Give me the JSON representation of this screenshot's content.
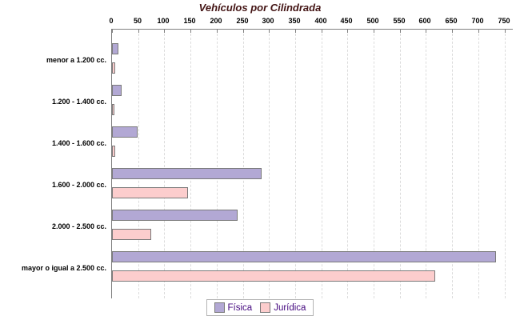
{
  "title": "Vehículos por Cilindrada",
  "chart_data": {
    "type": "bar",
    "orientation": "horizontal",
    "title": "Vehículos por Cilindrada",
    "categories": [
      "menor a 1.200 cc.",
      "1.200 - 1.400 cc.",
      "1.400 - 1.600 cc.",
      "1.600 - 2.000 cc.",
      "2.000 - 2.500 cc.",
      "mayor o igual a 2.500 cc."
    ],
    "series": [
      {
        "name": "Física",
        "color": "#b2a8d4",
        "values": [
          10,
          17,
          48,
          285,
          238,
          733
        ]
      },
      {
        "name": "Jurídica",
        "color": "#fccdcd",
        "values": [
          4,
          2,
          5,
          143,
          73,
          616
        ]
      }
    ],
    "xlim": [
      0,
      750
    ],
    "x_ticks": [
      0,
      50,
      100,
      150,
      200,
      250,
      300,
      350,
      400,
      450,
      500,
      550,
      600,
      650,
      700,
      750
    ],
    "grid": "vertical-dashed",
    "legend_position": "bottom-center",
    "axis_position": "top"
  },
  "colors": {
    "title": "#431414",
    "axis_line": "#808080",
    "gridline": "#dcdcdc",
    "bar_border": "#7a7a7a",
    "fisica_fill": "#b2a8d4",
    "juridica_fill": "#fccdcd",
    "legend_text": "#43077e",
    "legend_border": "#b4b4b4"
  }
}
